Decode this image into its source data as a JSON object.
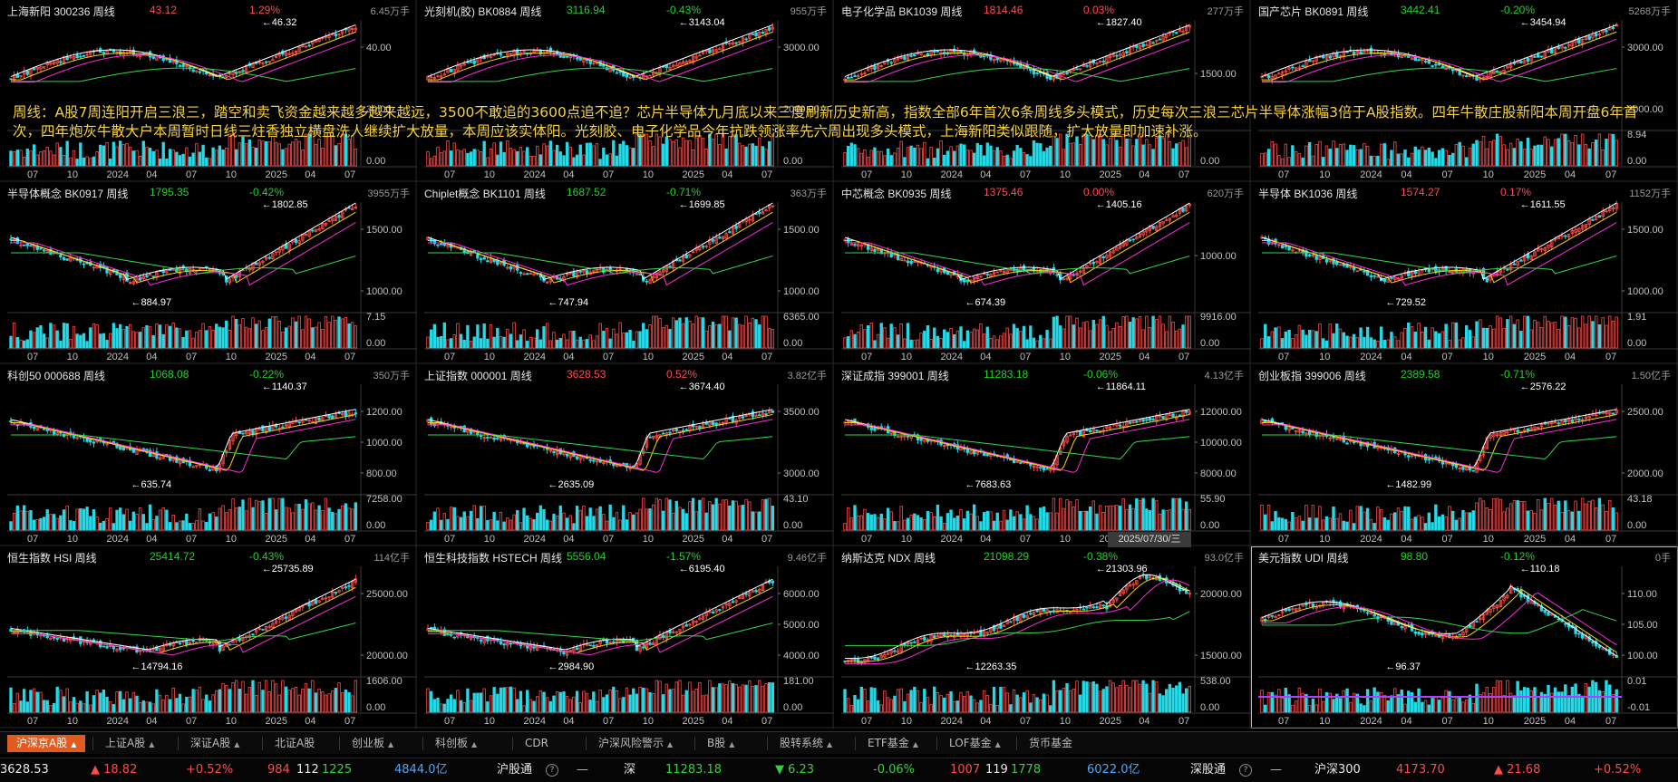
{
  "colors": {
    "up": "#ff4a4a",
    "down": "#22d02a",
    "bg": "#000000",
    "accent": "#e25b1e"
  },
  "overlay_text": "周线：A股7周连阳开启三浪三，踏空和卖飞资金越来越多越来越远，3500不敢追的3600点追不追？芯片半导体九月底以来三度刷新历史新高，指数全部6年首次6条周线多头模式，历史每次三浪三芯片半导体涨幅3倍于A股指数。四年牛散庄股新阳本周开盘6年首次，四年炮灰牛散大户本周暂时日线三炷香独立横盘洗人继续扩大放量，本周应该实体阳。光刻胶、电子化学品今年抗跌领涨率先六周出现多头模式，上海新阳类似跟随，扩大放量即加速补涨。",
  "date_label": "2025/07/30/三",
  "panels": [
    {
      "name": "上海新阳 300236 周线",
      "price": "43.12",
      "change": "1.29%",
      "dir": "up",
      "vol": "6.45万手",
      "ticks": [
        "40.00",
        "30.00"
      ],
      "vticks": [
        "",
        "0.00"
      ],
      "hi": "46.32",
      "lo": "",
      "xticks": [
        "07",
        "10",
        "2024",
        "04",
        "07",
        "10",
        "2025",
        "04",
        "07"
      ],
      "shape": "A"
    },
    {
      "name": "光刻机(胶) BK0884 周线",
      "price": "3116.94",
      "change": "-0.43%",
      "dir": "dn",
      "vol": "955万手",
      "ticks": [
        "3000.00",
        "2000.00"
      ],
      "vticks": [
        "",
        "0.00"
      ],
      "hi": "3143.04",
      "lo": "",
      "xticks": [
        "07",
        "10",
        "2024",
        "04",
        "07",
        "10",
        "2025",
        "04",
        "07"
      ],
      "shape": "A"
    },
    {
      "name": "电子化学品 BK1039 周线",
      "price": "1814.46",
      "change": "0.03%",
      "dir": "up",
      "vol": "277万手",
      "ticks": [
        "1500.00"
      ],
      "vticks": [
        "",
        "0.00"
      ],
      "hi": "1827.40",
      "lo": "",
      "xticks": [
        "07",
        "10",
        "2024",
        "04",
        "07",
        "10",
        "2025",
        "04",
        "07"
      ],
      "shape": "A"
    },
    {
      "name": "国产芯片 BK0891 周线",
      "price": "3442.41",
      "change": "-0.20%",
      "dir": "dn",
      "vol": "5268万手",
      "ticks": [
        "3000.00",
        "2000.00"
      ],
      "vticks": [
        "8.94",
        "0.00"
      ],
      "hi": "3454.94",
      "lo": "",
      "xticks": [
        "07",
        "10",
        "2024",
        "04",
        "07",
        "10",
        "2025",
        "04",
        "07"
      ],
      "shape": "A"
    },
    {
      "name": "半导体概念 BK0917 周线",
      "price": "1795.35",
      "change": "-0.42%",
      "dir": "dn",
      "vol": "3955万手",
      "ticks": [
        "1500.00",
        "1000.00"
      ],
      "vticks": [
        "7.15",
        "0.00"
      ],
      "hi": "1802.85",
      "lo": "884.97",
      "xticks": [
        "07",
        "10",
        "2024",
        "04",
        "07",
        "10",
        "2025",
        "04",
        "07"
      ],
      "shape": "B"
    },
    {
      "name": "Chiplet概念 BK1101 周线",
      "price": "1687.52",
      "change": "-0.71%",
      "dir": "dn",
      "vol": "363万手",
      "ticks": [
        "1500.00",
        "1000.00"
      ],
      "vticks": [
        "6365.00",
        "0.00"
      ],
      "hi": "1699.85",
      "lo": "747.94",
      "xticks": [
        "07",
        "10",
        "2024",
        "04",
        "07",
        "10",
        "2025",
        "04",
        "07"
      ],
      "shape": "B"
    },
    {
      "name": "中芯概念 BK0935 周线",
      "price": "1375.46",
      "change": "0.00%",
      "dir": "up",
      "vol": "620万手",
      "ticks": [
        "1000.00"
      ],
      "vticks": [
        "9916.00",
        "0.00"
      ],
      "hi": "1405.16",
      "lo": "674.39",
      "xticks": [
        "07",
        "10",
        "2024",
        "04",
        "07",
        "10",
        "2025",
        "04",
        "07"
      ],
      "shape": "B"
    },
    {
      "name": "半导体 BK1036 周线",
      "price": "1574.27",
      "change": "0.17%",
      "dir": "up",
      "vol": "1152万手",
      "ticks": [
        "1500.00",
        "1000.00"
      ],
      "vticks": [
        "1.91",
        "0.00"
      ],
      "hi": "1611.55",
      "lo": "729.52",
      "xticks": [
        "07",
        "10",
        "2024",
        "04",
        "07",
        "10",
        "2025",
        "04",
        "07"
      ],
      "shape": "B"
    },
    {
      "name": "科创50 000688 周线",
      "price": "1068.08",
      "change": "-0.22%",
      "dir": "dn",
      "vol": "350万手",
      "ticks": [
        "1200.00",
        "1000.00",
        "800.00"
      ],
      "vticks": [
        "7258.00",
        "0.00"
      ],
      "hi": "1140.37",
      "lo": "635.74",
      "xticks": [
        "07",
        "10",
        "2024",
        "04",
        "07",
        "10",
        "2025",
        "04",
        "07"
      ],
      "shape": "C"
    },
    {
      "name": "上证指数 000001 周线",
      "price": "3628.53",
      "change": "0.52%",
      "dir": "up",
      "vol": "3.82亿手",
      "ticks": [
        "3500.00",
        "3000.00"
      ],
      "vticks": [
        "43.10",
        "0.00"
      ],
      "hi": "3674.40",
      "lo": "2635.09",
      "xticks": [
        "07",
        "10",
        "2024",
        "04",
        "07",
        "10",
        "2025",
        "04",
        "07"
      ],
      "shape": "C"
    },
    {
      "name": "深证成指 399001 周线",
      "price": "11283.18",
      "change": "-0.06%",
      "dir": "dn",
      "vol": "4.13亿手",
      "ticks": [
        "12000.00",
        "10000.00",
        "8000.00"
      ],
      "vticks": [
        "55.90",
        "0.00"
      ],
      "hi": "11864.11",
      "lo": "7683.63",
      "xticks": [
        "07",
        "10",
        "2024",
        "04",
        "07",
        "10",
        "2025",
        "04",
        "07"
      ],
      "shape": "C"
    },
    {
      "name": "创业板指 399006 周线",
      "price": "2389.58",
      "change": "-0.71%",
      "dir": "dn",
      "vol": "1.50亿手",
      "ticks": [
        "2500.00",
        "2000.00"
      ],
      "vticks": [
        "43.18",
        "0.00"
      ],
      "hi": "2576.22",
      "lo": "1482.99",
      "xticks": [
        "07",
        "10",
        "2024",
        "04",
        "07",
        "10",
        "2025",
        "04",
        "07"
      ],
      "shape": "C"
    },
    {
      "name": "恒生指数 HSI 周线",
      "price": "25414.72",
      "change": "-0.43%",
      "dir": "dn",
      "vol": "114亿手",
      "ticks": [
        "25000.00",
        "20000.00"
      ],
      "vticks": [
        "1606.00",
        "0.00"
      ],
      "hi": "25735.89",
      "lo": "14794.16",
      "xticks": [
        "07",
        "10",
        "2024",
        "04",
        "07",
        "10",
        "2025",
        "04",
        "07"
      ],
      "shape": "D"
    },
    {
      "name": "恒生科技指数 HSTECH 周线",
      "price": "5556.04",
      "change": "-1.57%",
      "dir": "dn",
      "vol": "9.46亿手",
      "ticks": [
        "6000.00",
        "5000.00",
        "4000.00"
      ],
      "vticks": [
        "181.00",
        "0.00"
      ],
      "hi": "6195.40",
      "lo": "2984.90",
      "xticks": [
        "07",
        "10",
        "2024",
        "04",
        "07",
        "10",
        "2025",
        "04",
        "07"
      ],
      "shape": "D"
    },
    {
      "name": "纳斯达克 NDX 周线",
      "price": "21098.29",
      "change": "-0.38%",
      "dir": "dn",
      "vol": "93.0亿手",
      "ticks": [
        "20000.00",
        "15000.00"
      ],
      "vticks": [
        "538.00",
        "0.00"
      ],
      "hi": "21303.96",
      "lo": "12263.35",
      "xticks": [
        "07",
        "10",
        "2024",
        "04",
        "07",
        "10",
        "2025",
        "04",
        "07"
      ],
      "shape": "E"
    },
    {
      "name": "美元指数 UDI 周线",
      "price": "98.80",
      "change": "-0.12%",
      "dir": "dn",
      "vol": "0手",
      "ticks": [
        "110.00",
        "105.00",
        "100.00"
      ],
      "vticks": [
        "0.01",
        "-0.01"
      ],
      "hi": "110.18",
      "lo": "96.37",
      "xticks": [
        "07",
        "10",
        "2024",
        "04",
        "07",
        "10",
        "2025",
        "04",
        "07"
      ],
      "shape": "F"
    }
  ],
  "tabs": [
    {
      "label": "沪深京A股",
      "tri": "▲",
      "active": true
    },
    {
      "label": "上证A股",
      "tri": "▲"
    },
    {
      "label": "深证A股",
      "tri": "▲"
    },
    {
      "label": "北证A股",
      "tri": ""
    },
    {
      "label": "创业板",
      "tri": "▲"
    },
    {
      "label": "科创板",
      "tri": "▲"
    },
    {
      "label": "CDR",
      "tri": ""
    },
    {
      "label": "沪深风险警示",
      "tri": "▲"
    },
    {
      "label": "B股",
      "tri": "▲"
    },
    {
      "label": "股转系统",
      "tri": "▲"
    },
    {
      "label": "ETF基金",
      "tri": "▲"
    },
    {
      "label": "LOF基金",
      "tri": "▲"
    },
    {
      "label": "货币基金",
      "tri": ""
    }
  ],
  "status": {
    "sh_value": "3628.53",
    "sh_change": "▲ 18.82",
    "sh_pct": "+0.52%",
    "sh_up": "984",
    "sh_flat": "112",
    "sh_down": "1225",
    "sh_amount": "4844.0亿",
    "hgt_label": "沪股通",
    "hgt_value": "—",
    "sz_label": "深",
    "sz_value": "11283.18",
    "sz_change": "▼ 6.23",
    "sz_pct": "-0.06%",
    "sz_up": "1007",
    "sz_flat": "119",
    "sz_down": "1778",
    "sz_amount": "6022.0亿",
    "sgt_label": "深股通",
    "sgt_value": "—",
    "hs300_label": "沪深300",
    "hs300_value": "4173.70",
    "hs300_change": "▲ 21.68",
    "hs300_pct": "+0.52%"
  }
}
